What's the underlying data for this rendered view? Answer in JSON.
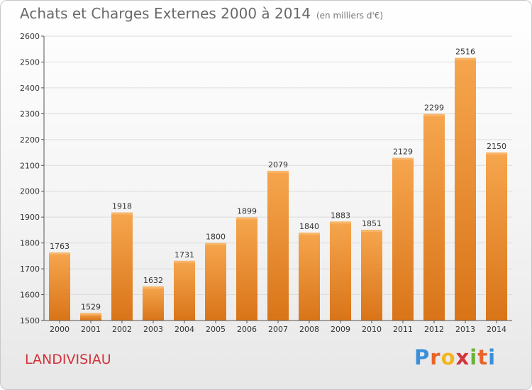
{
  "header": {
    "title": "Achats et Charges Externes 2000 à 2014",
    "subtitle": "(en milliers d'€)"
  },
  "footer": {
    "city": "LANDIVISIAU",
    "logo_text": "Proxiti"
  },
  "colors": {
    "bar_light": "#f6a64e",
    "bar_dark": "#d97418",
    "city_text": "#d2323a"
  },
  "chart_data": {
    "type": "bar",
    "title": "Achats et Charges Externes 2000 à 2014",
    "subtitle": "(en milliers d'€)",
    "categories": [
      "2000",
      "2001",
      "2002",
      "2003",
      "2004",
      "2005",
      "2006",
      "2007",
      "2008",
      "2009",
      "2010",
      "2011",
      "2012",
      "2013",
      "2014"
    ],
    "values": [
      1763,
      1529,
      1918,
      1632,
      1731,
      1800,
      1899,
      2079,
      1840,
      1883,
      1851,
      2129,
      2299,
      2516,
      2150
    ],
    "ylim": [
      1500,
      2600
    ],
    "yticks": [
      1500,
      1600,
      1700,
      1800,
      1900,
      2000,
      2100,
      2200,
      2300,
      2400,
      2500,
      2600
    ],
    "grid": true,
    "legend": "none"
  }
}
